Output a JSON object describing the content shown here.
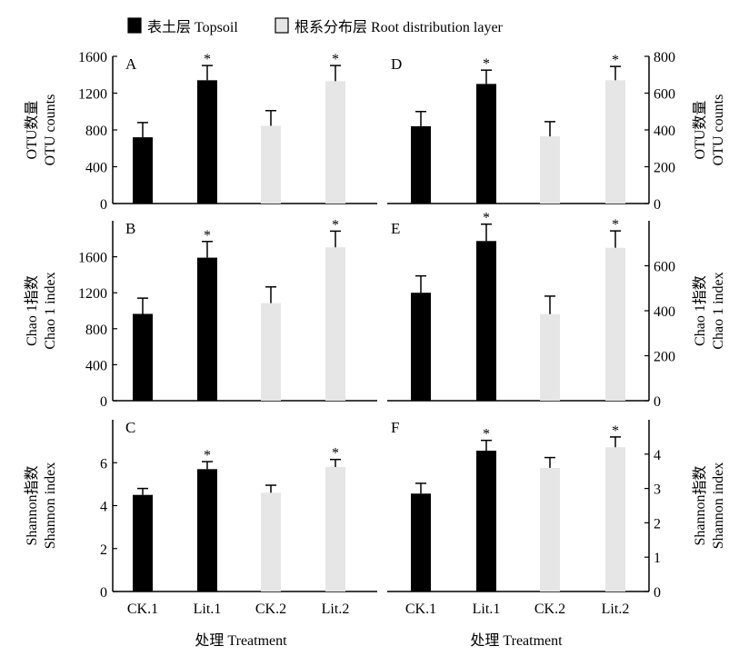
{
  "legend": {
    "topsoil": {
      "label": "表土层 Topsoil",
      "color": "#000000"
    },
    "root": {
      "label": "根系分布层 Root distribution layer",
      "color": "#e6e6e6"
    }
  },
  "xlabel": "处理 Treatment",
  "colors": {
    "topsoil": "#000000",
    "root": "#e6e6e6",
    "axis": "#000000"
  },
  "chart_data": [
    {
      "type": "bar",
      "panel": "A",
      "position": "row1-left",
      "ylabel": "OTU数量|OTU counts",
      "ylim": [
        0,
        1600
      ],
      "ticks": [
        0,
        400,
        800,
        1200,
        1600
      ],
      "axis_side": "left",
      "categories": [
        "CK.1",
        "Lit.1",
        "CK.2",
        "Lit.2"
      ],
      "values": [
        720,
        1340,
        845,
        1330
      ],
      "errors": [
        160,
        160,
        165,
        170
      ],
      "layer": [
        "topsoil",
        "topsoil",
        "root",
        "root"
      ],
      "significant": [
        false,
        true,
        false,
        true
      ]
    },
    {
      "type": "bar",
      "panel": "D",
      "position": "row1-right",
      "ylabel": "OTU数量|OTU counts",
      "ylim": [
        0,
        800
      ],
      "ticks": [
        0,
        200,
        400,
        600,
        800
      ],
      "axis_side": "right",
      "categories": [
        "CK.1",
        "Lit.1",
        "CK.2",
        "Lit.2"
      ],
      "values": [
        420,
        650,
        365,
        670
      ],
      "errors": [
        80,
        75,
        80,
        75
      ],
      "layer": [
        "topsoil",
        "topsoil",
        "root",
        "root"
      ],
      "significant": [
        false,
        true,
        false,
        true
      ]
    },
    {
      "type": "bar",
      "panel": "B",
      "position": "row2-left",
      "ylabel": "Chao 1指数|Chao 1 index",
      "ylim": [
        0,
        2000
      ],
      "ticks": [
        0,
        400,
        800,
        1200,
        1600
      ],
      "axis_side": "left",
      "categories": [
        "CK.1",
        "Lit.1",
        "CK.2",
        "Lit.2"
      ],
      "values": [
        965,
        1590,
        1085,
        1705
      ],
      "errors": [
        175,
        180,
        180,
        180
      ],
      "layer": [
        "topsoil",
        "topsoil",
        "root",
        "root"
      ],
      "significant": [
        false,
        true,
        false,
        true
      ]
    },
    {
      "type": "bar",
      "panel": "E",
      "position": "row2-right",
      "ylabel": "Chao 1指数|Chao 1 index",
      "ylim": [
        0,
        800
      ],
      "ticks": [
        0,
        200,
        400,
        600
      ],
      "axis_side": "right",
      "categories": [
        "CK.1",
        "Lit.1",
        "CK.2",
        "Lit.2"
      ],
      "values": [
        480,
        710,
        385,
        680
      ],
      "errors": [
        75,
        75,
        80,
        75
      ],
      "layer": [
        "topsoil",
        "topsoil",
        "root",
        "root"
      ],
      "significant": [
        false,
        true,
        false,
        true
      ]
    },
    {
      "type": "bar",
      "panel": "C",
      "position": "row3-left",
      "ylabel": "Shannon指数|Shannon index",
      "ylim": [
        0,
        8
      ],
      "ticks": [
        0,
        2,
        4,
        6
      ],
      "axis_side": "left",
      "categories": [
        "CK.1",
        "Lit.1",
        "CK.2",
        "Lit.2"
      ],
      "values": [
        4.5,
        5.7,
        4.6,
        5.8
      ],
      "errors": [
        0.3,
        0.35,
        0.35,
        0.35
      ],
      "layer": [
        "topsoil",
        "topsoil",
        "root",
        "root"
      ],
      "significant": [
        false,
        true,
        false,
        true
      ]
    },
    {
      "type": "bar",
      "panel": "F",
      "position": "row3-right",
      "ylabel": "Shannon指数|Shannon index",
      "ylim": [
        0,
        5
      ],
      "ticks": [
        0,
        1,
        2,
        3,
        4
      ],
      "axis_side": "right",
      "categories": [
        "CK.1",
        "Lit.1",
        "CK.2",
        "Lit.2"
      ],
      "values": [
        2.85,
        4.1,
        3.6,
        4.2
      ],
      "errors": [
        0.3,
        0.3,
        0.3,
        0.3
      ],
      "layer": [
        "topsoil",
        "topsoil",
        "root",
        "root"
      ],
      "significant": [
        false,
        true,
        false,
        true
      ]
    }
  ]
}
